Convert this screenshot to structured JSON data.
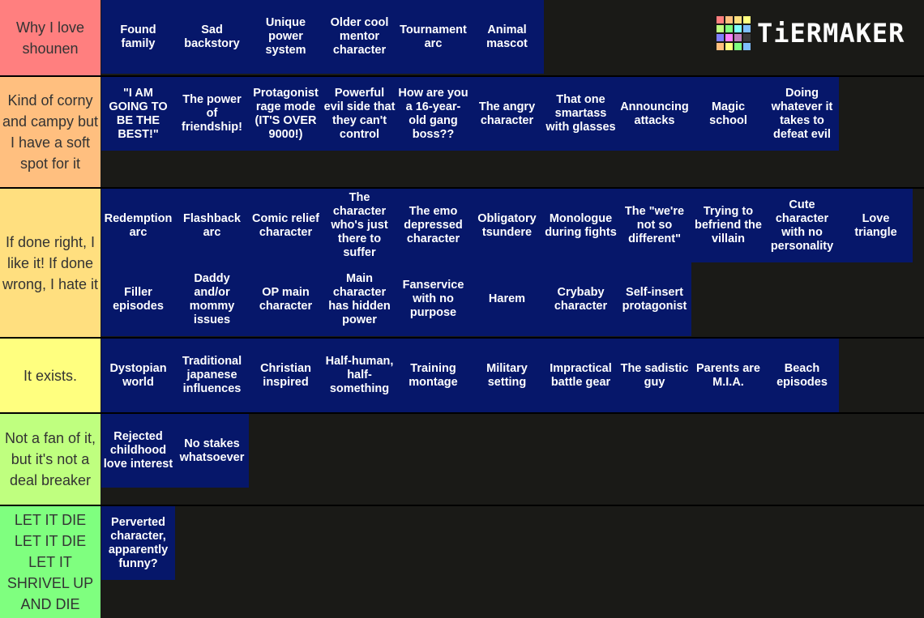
{
  "logo": {
    "text": "TiERMAKER",
    "grid_colors": [
      "#ff7f7f",
      "#ffbf7f",
      "#ffdf7f",
      "#ffff7f",
      "#bfff7f",
      "#7fff7f",
      "#7fffff",
      "#7fbfff",
      "#7f7fff",
      "#ff7fff",
      "#bf7fbf",
      "#3b3b3b",
      "#ffbf7f",
      "#ffff7f",
      "#7fff7f",
      "#7fbfff"
    ]
  },
  "tiers": [
    {
      "label": "Why I love shounen",
      "color": "#ff7f7f",
      "items": [
        "Found family",
        "Sad backstory",
        "Unique power system",
        "Older cool mentor character",
        "Tournament arc",
        "Animal mascot"
      ]
    },
    {
      "label": "Kind of corny and campy but I have a soft spot for it",
      "color": "#ffbf7f",
      "items": [
        "\"I AM GOING TO BE THE BEST!\"",
        "The power of friendship!",
        "Protagonist rage mode (IT'S OVER 9000!)",
        "Powerful evil side that they can't control",
        "How are you a 16-year-old gang boss??",
        "The angry character",
        "That one smartass with glasses",
        "Announcing attacks",
        "Magic school",
        "Doing whatever it takes to defeat evil"
      ]
    },
    {
      "label": "If done right, I like it! If done wrong, I hate it",
      "color": "#ffdf7f",
      "items": [
        "Redemption arc",
        "Flashback arc",
        "Comic relief character",
        "The character who's just there to suffer",
        "The emo depressed character",
        "Obligatory tsundere",
        "Monologue during fights",
        "The \"we're not so different\"",
        "Trying to befriend the villain",
        "Cute character with no personality",
        "Love triangle",
        "Filler episodes",
        "Daddy and/or mommy issues",
        "OP main character",
        "Main character has hidden power",
        "Fanservice with no purpose",
        "Harem",
        "Crybaby character",
        "Self-insert protagonist"
      ]
    },
    {
      "label": "It exists.",
      "color": "#ffff7f",
      "items": [
        "Dystopian world",
        "Traditional japanese influences",
        "Christian inspired",
        "Half-human, half-something",
        "Training montage",
        "Military setting",
        "Impractical battle gear",
        "The sadistic guy",
        "Parents are M.I.A.",
        "Beach episodes"
      ]
    },
    {
      "label": "Not a fan of it, but it's not a deal breaker",
      "color": "#bfff7f",
      "items": [
        "Rejected childhood love interest",
        "No stakes whatsoever"
      ]
    },
    {
      "label": "LET IT DIE LET IT DIE LET IT SHRIVEL UP AND DIE",
      "color": "#7fff7f",
      "items": [
        "Perverted character, apparently funny?"
      ]
    }
  ]
}
